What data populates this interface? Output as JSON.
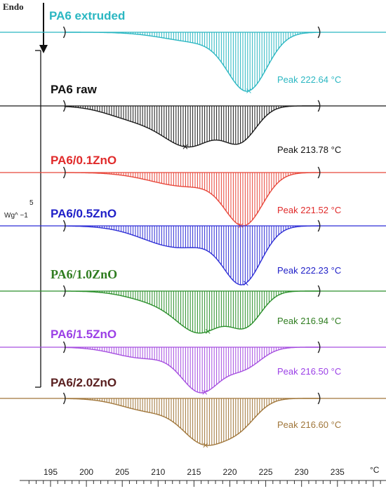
{
  "chart_data": {
    "type": "line",
    "endo_label": "Endo",
    "scale_bar": {
      "value": "5",
      "unit": "Wg^ −1"
    },
    "x_unit": "°C",
    "xlim": [
      192,
      241
    ],
    "x_ticks": [
      195,
      200,
      205,
      210,
      215,
      220,
      225,
      230,
      235
    ],
    "integration_limits": [
      197,
      232.5
    ],
    "series": [
      {
        "name": "PA6 extruded",
        "color": "#2bb7c2",
        "label_color": "#2bb7c2",
        "serif": false,
        "peak_label": "Peak 222.64 °C",
        "peak_temp": 222.64,
        "depth": 1.0,
        "components": [
          [
            222.5,
            2.7,
            1.0
          ],
          [
            216,
            5,
            0.18
          ]
        ]
      },
      {
        "name": "PA6 raw",
        "color": "#1a1a1a",
        "label_color": "#111111",
        "serif": false,
        "peak_label": "Peak 213.78 °C",
        "peak_temp": 213.78,
        "depth": 0.93,
        "components": [
          [
            214.5,
            3.6,
            0.88
          ],
          [
            221.5,
            2.3,
            0.72
          ],
          [
            207,
            4,
            0.3
          ]
        ]
      },
      {
        "name": "PA6/0.1ZnO",
        "color": "#e8473b",
        "label_color": "#e02a2a",
        "serif": false,
        "peak_label": "Peak 221.52 °C",
        "peak_temp": 221.52,
        "depth": 1.0,
        "components": [
          [
            222,
            2.6,
            1.0
          ],
          [
            214,
            5,
            0.28
          ]
        ]
      },
      {
        "name": "PA6/0.5ZnO",
        "color": "#2f2fd6",
        "label_color": "#2020c8",
        "serif": false,
        "peak_label": "Peak 222.23 °C",
        "peak_temp": 222.23,
        "depth": 1.0,
        "components": [
          [
            221.8,
            2.6,
            1.0
          ],
          [
            213,
            5,
            0.4
          ]
        ]
      },
      {
        "name": "PA6/1.0ZnO",
        "color": "#2a8f2a",
        "label_color": "#2f7d20",
        "serif": true,
        "peak_label": "Peak 216.94 °C",
        "peak_temp": 216.94,
        "depth": 0.95,
        "components": [
          [
            216,
            3.2,
            0.92
          ],
          [
            222.3,
            2.2,
            0.75
          ],
          [
            210,
            4,
            0.25
          ]
        ]
      },
      {
        "name": "PA6/1.5ZnO",
        "color": "#a64fe0",
        "label_color": "#9b3fe6",
        "serif": false,
        "peak_label": "Peak 216.50 °C",
        "peak_temp": 216.5,
        "depth": 1.0,
        "components": [
          [
            216,
            2.7,
            1.0
          ],
          [
            222,
            2.4,
            0.45
          ],
          [
            208,
            4,
            0.25
          ]
        ]
      },
      {
        "name": "PA6/2.0ZnO",
        "color": "#a0763a",
        "label_color": "#5a2020",
        "serif": false,
        "peak_label": "Peak 216.60 °C",
        "peak_temp": 216.6,
        "depth": 1.0,
        "components": [
          [
            216.5,
            3.0,
            1.0
          ],
          [
            221.5,
            2.4,
            0.55
          ],
          [
            209,
            4,
            0.3
          ]
        ]
      }
    ]
  }
}
